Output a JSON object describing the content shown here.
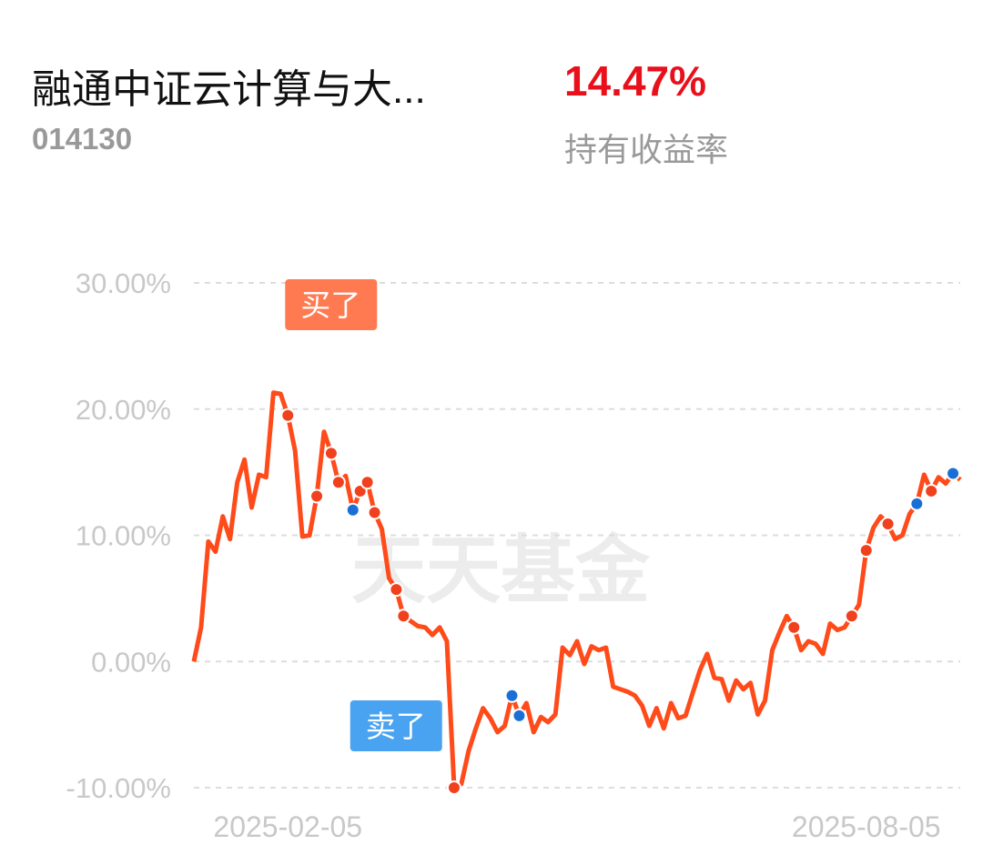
{
  "header": {
    "title": "融通中证云计算与大...",
    "code": "014130",
    "return_value": "14.47%",
    "return_label": "持有收益率"
  },
  "watermark": "天天基金",
  "chart_data": {
    "type": "line",
    "color": "#ff4a1a",
    "categories": [
      null,
      null,
      null,
      null,
      null,
      null,
      null,
      null,
      null,
      null,
      null,
      null,
      null,
      "2025-02-05",
      null,
      null,
      null,
      null,
      null,
      null,
      null,
      null,
      null,
      null,
      null,
      null,
      null,
      null,
      null,
      null,
      null,
      null,
      null,
      null,
      null,
      null,
      null,
      null,
      null,
      null,
      null,
      null,
      null,
      null,
      null,
      null,
      null,
      null,
      null,
      null,
      null,
      null,
      null,
      null,
      null,
      null,
      null,
      null,
      null,
      null,
      null,
      null,
      null,
      null,
      null,
      null,
      null,
      null,
      null,
      null,
      null,
      null,
      null,
      null,
      null,
      null,
      null,
      null,
      null,
      null,
      null,
      null,
      null,
      null,
      null,
      null,
      null,
      null,
      null,
      null,
      null,
      null,
      null,
      "2025-08-05",
      null,
      null,
      null,
      null,
      null,
      null,
      null,
      null,
      null,
      null,
      null,
      null,
      null
    ],
    "values": [
      0,
      2.7,
      9.5,
      8.7,
      11.5,
      9.7,
      14.2,
      16,
      12.2,
      14.8,
      14.6,
      21.3,
      21.2,
      19.5,
      16.7,
      9.9,
      10,
      13.1,
      18.2,
      16.5,
      14.2,
      14.7,
      12,
      13.5,
      14.2,
      11.8,
      10.5,
      6.6,
      5.7,
      3.6,
      3.2,
      2.8,
      2.7,
      2.1,
      2.7,
      1.6,
      -10,
      -9.7,
      -7.1,
      -5.3,
      -3.7,
      -4.5,
      -5.6,
      -5.1,
      -2.7,
      -4.3,
      -3.3,
      -5.6,
      -4.4,
      -4.8,
      -4.2,
      1.1,
      0.5,
      1.6,
      -0.2,
      1.2,
      0.9,
      1.1,
      -2,
      -2.2,
      -2.4,
      -2.7,
      -3.5,
      -5.1,
      -3.7,
      -5.3,
      -3.3,
      -4.5,
      -4.3,
      -2.5,
      -0.7,
      0.6,
      -1.3,
      -1.4,
      -3.1,
      -1.5,
      -2.2,
      -1.7,
      -4.2,
      -3.1,
      0.9,
      2.3,
      3.6,
      2.7,
      0.9,
      1.6,
      1.4,
      0.6,
      3,
      2.5,
      2.7,
      3.6,
      4.5,
      8.8,
      10.6,
      11.5,
      10.9,
      9.7,
      10,
      11.7,
      12.5,
      14.8,
      13.5,
      14.6,
      14.1,
      14.9,
      14.4
    ],
    "buy_indices": [
      13,
      17,
      19,
      20,
      23,
      24,
      25,
      28,
      29,
      36,
      83,
      91,
      93,
      96,
      102
    ],
    "buy_color": "#f0401e",
    "sell_indices": [
      22,
      44,
      45,
      100,
      105
    ],
    "sell_color": "#1a6fd6",
    "annotations": [
      {
        "label": "买了",
        "index": 13,
        "color": "#ff7a50"
      },
      {
        "label": "卖了",
        "index": 22,
        "color": "#4aa3f0"
      }
    ],
    "ylim": [
      -10,
      30
    ],
    "yticks": [
      {
        "value": -10,
        "label": "-10.00%"
      },
      {
        "value": 0,
        "label": "0.00%"
      },
      {
        "value": 10,
        "label": "10.00%"
      },
      {
        "value": 20,
        "label": "20.00%"
      },
      {
        "value": 30,
        "label": "30.00%"
      }
    ],
    "grid": true
  }
}
